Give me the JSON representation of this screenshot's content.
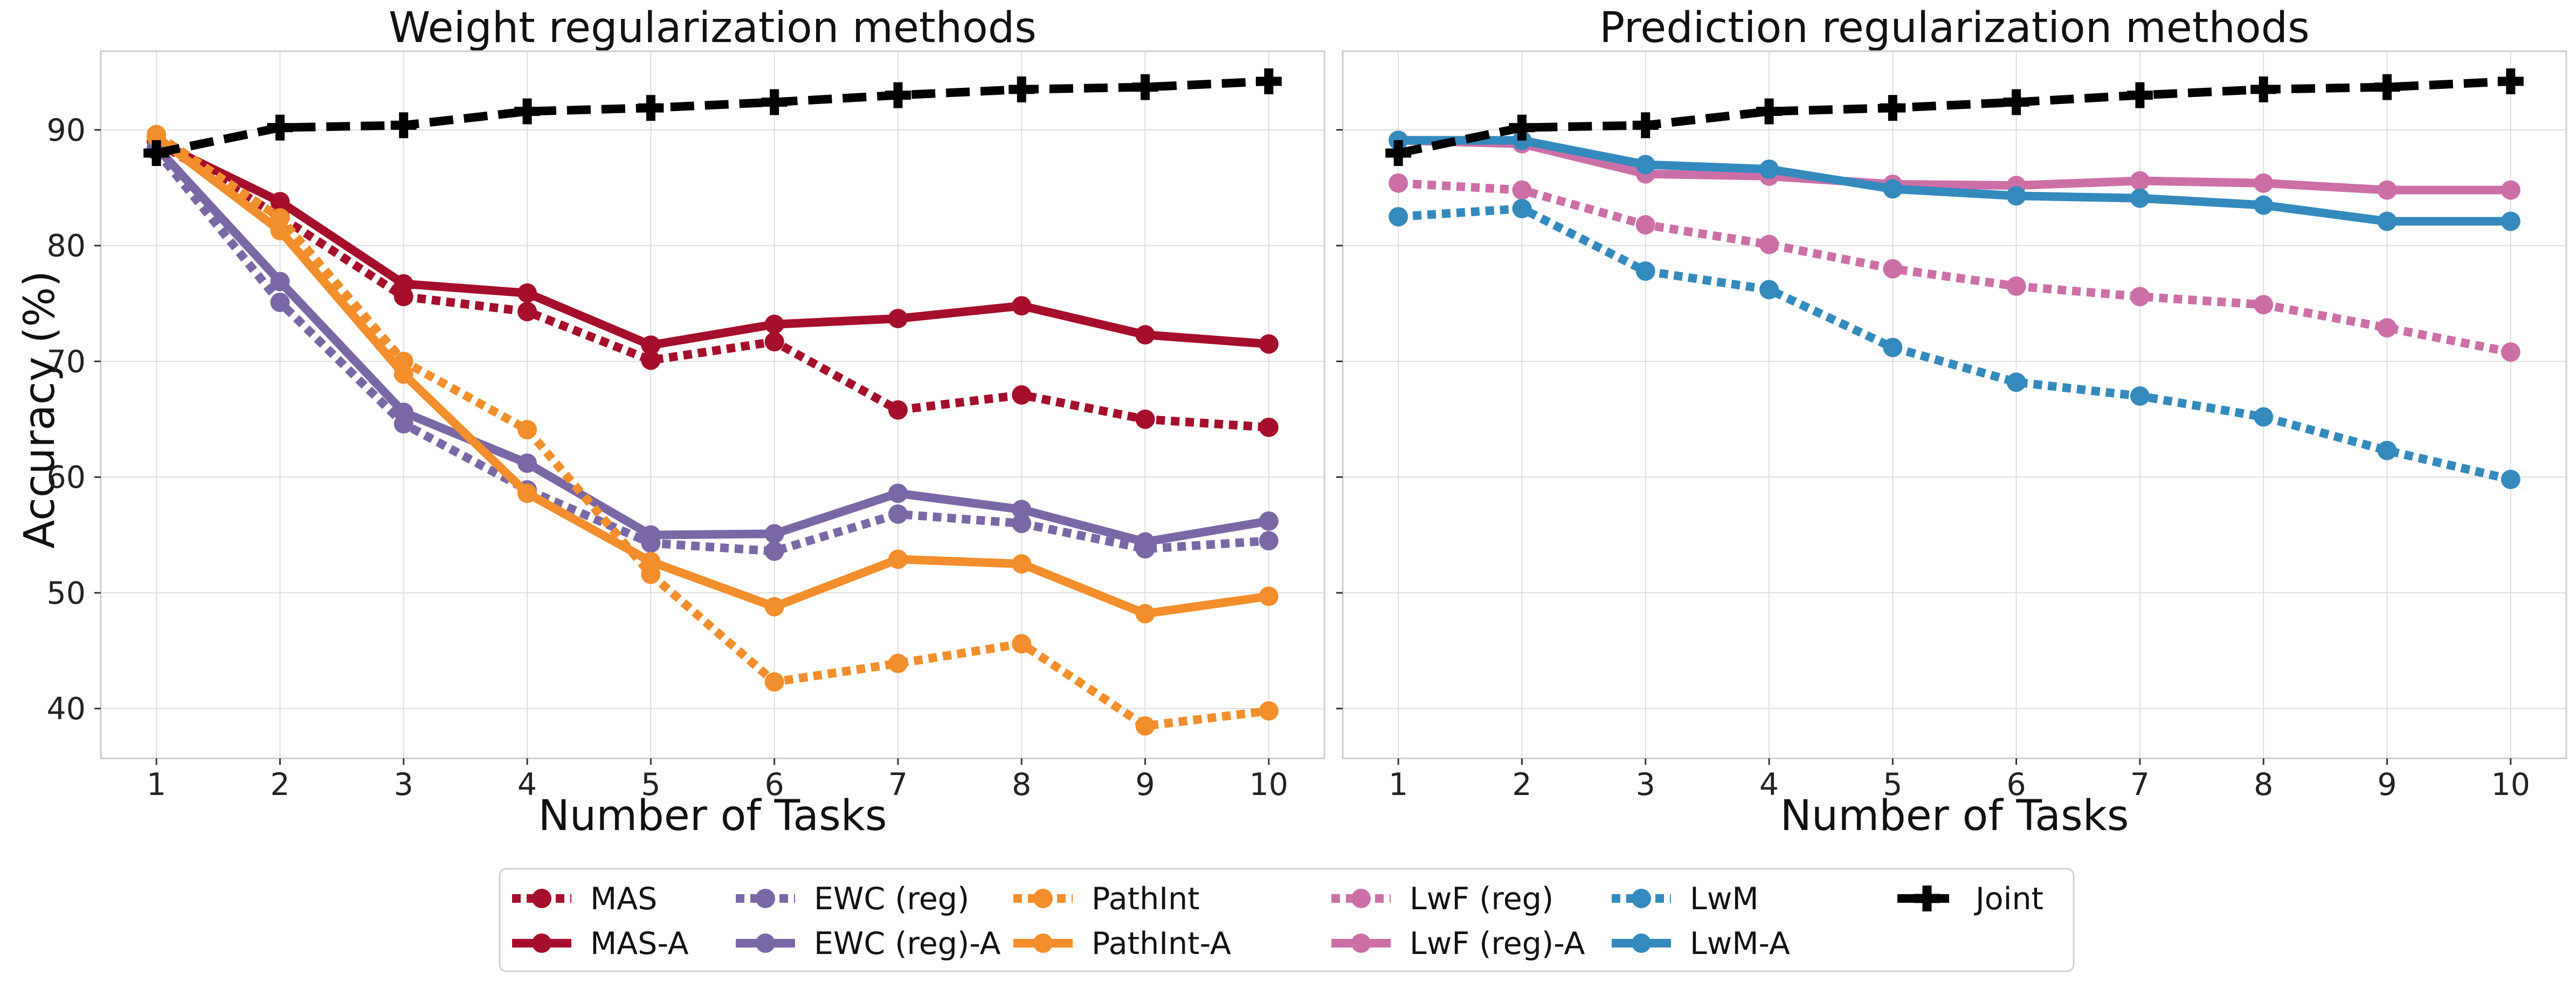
{
  "chart_data": {
    "type": "line",
    "ylabel": "Accuracy (%)",
    "x": [
      1,
      2,
      3,
      4,
      5,
      6,
      7,
      8,
      9,
      10
    ],
    "xticks": [
      "1",
      "2",
      "3",
      "4",
      "5",
      "6",
      "7",
      "8",
      "9",
      "10"
    ],
    "yticks": [
      40,
      50,
      60,
      70,
      80,
      90
    ],
    "ylim": [
      35.7,
      96.8
    ],
    "xlim": [
      0.55,
      10.45
    ],
    "grid": true,
    "legend_placement": "bottom-center",
    "panels": [
      {
        "title": "Weight regularization methods",
        "xlabel": "Number of Tasks",
        "series": [
          {
            "name": "MAS",
            "color": "#a50f2b",
            "style": "dotted",
            "marker": "circle",
            "values": [
              89.0,
              82.5,
              75.6,
              74.3,
              70.1,
              71.7,
              65.8,
              67.1,
              65.0,
              64.3
            ]
          },
          {
            "name": "MAS-A",
            "color": "#a50f2b",
            "style": "solid",
            "marker": "circle",
            "values": [
              89.0,
              83.8,
              76.7,
              75.9,
              71.4,
              73.2,
              73.7,
              74.8,
              72.3,
              71.5
            ]
          },
          {
            "name": "EWC (reg)",
            "color": "#7a68a6",
            "style": "dotted",
            "marker": "circle",
            "values": [
              88.2,
              75.1,
              64.6,
              58.9,
              54.3,
              53.6,
              56.8,
              56.0,
              53.8,
              54.5
            ]
          },
          {
            "name": "EWC (reg)-A",
            "color": "#7a68a6",
            "style": "solid",
            "marker": "circle",
            "values": [
              88.5,
              76.9,
              65.6,
              61.2,
              55.0,
              55.1,
              58.6,
              57.2,
              54.4,
              56.2
            ]
          },
          {
            "name": "PathInt",
            "color": "#f28e2b",
            "style": "dotted",
            "marker": "circle",
            "values": [
              89.6,
              82.4,
              70.0,
              64.1,
              51.6,
              42.3,
              43.9,
              45.6,
              38.5,
              39.8
            ]
          },
          {
            "name": "PathInt-A",
            "color": "#f28e2b",
            "style": "solid",
            "marker": "circle",
            "values": [
              89.4,
              81.3,
              68.9,
              58.6,
              52.7,
              48.8,
              52.9,
              52.5,
              48.2,
              49.7
            ]
          },
          {
            "name": "Joint",
            "color": "#000000",
            "style": "dashed",
            "marker": "plus",
            "values": [
              88.0,
              90.2,
              90.4,
              91.6,
              91.9,
              92.4,
              93.0,
              93.5,
              93.7,
              94.2
            ]
          }
        ]
      },
      {
        "title": "Prediction regularization methods",
        "xlabel": "Number of Tasks",
        "series": [
          {
            "name": "LwF (reg)",
            "color": "#cc6fa7",
            "style": "dotted",
            "marker": "circle",
            "values": [
              85.4,
              84.8,
              81.8,
              80.1,
              78.0,
              76.5,
              75.6,
              74.9,
              72.9,
              70.8
            ]
          },
          {
            "name": "LwF (reg)-A",
            "color": "#cc6fa7",
            "style": "solid",
            "marker": "circle",
            "values": [
              89.1,
              88.8,
              86.2,
              86.0,
              85.3,
              85.2,
              85.6,
              85.4,
              84.8,
              84.8
            ]
          },
          {
            "name": "LwM",
            "color": "#348abd",
            "style": "dotted",
            "marker": "circle",
            "values": [
              82.5,
              83.2,
              77.8,
              76.2,
              71.2,
              68.2,
              67.0,
              65.2,
              62.3,
              59.8
            ]
          },
          {
            "name": "LwM-A",
            "color": "#348abd",
            "style": "solid",
            "marker": "circle",
            "values": [
              89.1,
              89.1,
              87.0,
              86.6,
              84.9,
              84.3,
              84.1,
              83.5,
              82.1,
              82.1
            ]
          },
          {
            "name": "Joint",
            "color": "#000000",
            "style": "dashed",
            "marker": "plus",
            "values": [
              88.0,
              90.2,
              90.4,
              91.6,
              91.9,
              92.4,
              93.0,
              93.5,
              93.7,
              94.2
            ]
          }
        ]
      }
    ],
    "legend": [
      {
        "name": "MAS",
        "color": "#a50f2b",
        "style": "dotted",
        "marker": "circle"
      },
      {
        "name": "MAS-A",
        "color": "#a50f2b",
        "style": "solid",
        "marker": "circle"
      },
      {
        "name": "EWC (reg)",
        "color": "#7a68a6",
        "style": "dotted",
        "marker": "circle"
      },
      {
        "name": "EWC (reg)-A",
        "color": "#7a68a6",
        "style": "solid",
        "marker": "circle"
      },
      {
        "name": "PathInt",
        "color": "#f28e2b",
        "style": "dotted",
        "marker": "circle"
      },
      {
        "name": "PathInt-A",
        "color": "#f28e2b",
        "style": "solid",
        "marker": "circle"
      },
      {
        "name": "LwF (reg)",
        "color": "#cc6fa7",
        "style": "dotted",
        "marker": "circle"
      },
      {
        "name": "LwF (reg)-A",
        "color": "#cc6fa7",
        "style": "solid",
        "marker": "circle"
      },
      {
        "name": "LwM",
        "color": "#348abd",
        "style": "dotted",
        "marker": "circle"
      },
      {
        "name": "LwM-A",
        "color": "#348abd",
        "style": "solid",
        "marker": "circle"
      },
      {
        "name": "Joint",
        "color": "#000000",
        "style": "dashed",
        "marker": "plus"
      }
    ]
  }
}
